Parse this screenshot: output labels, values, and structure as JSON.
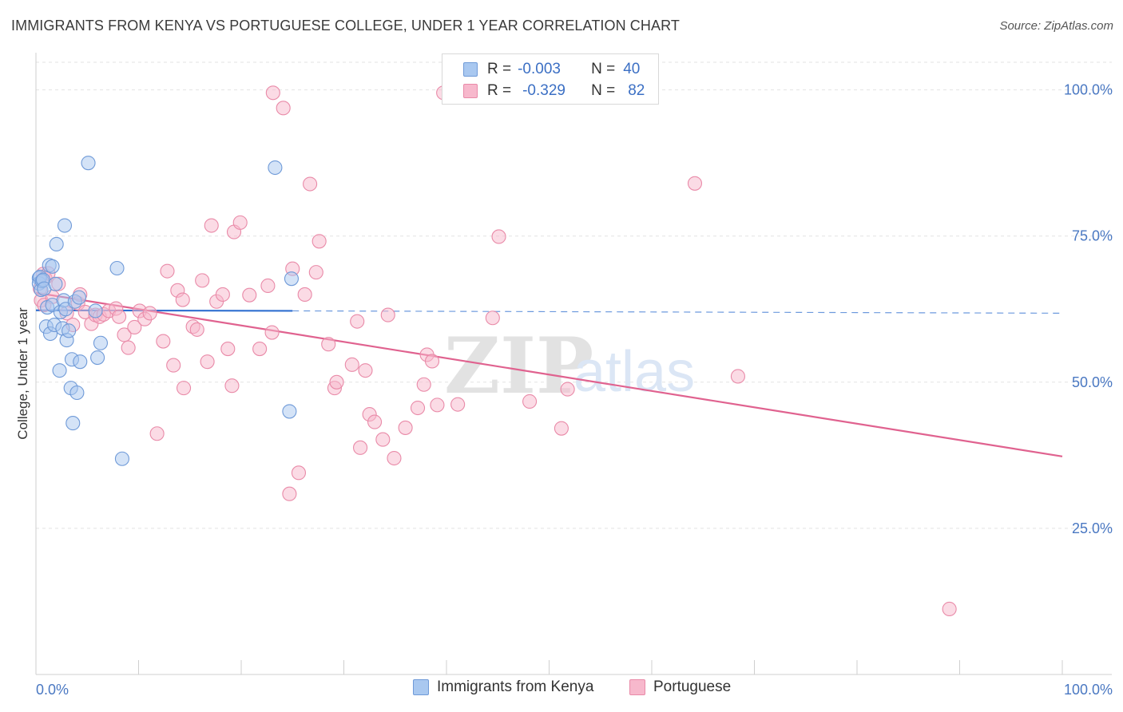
{
  "title": "IMMIGRANTS FROM KENYA VS PORTUGUESE COLLEGE, UNDER 1 YEAR CORRELATION CHART",
  "source": "Source: ZipAtlas.com",
  "legend_box": {
    "rows": [
      {
        "r_label": "R =",
        "r_value": "-0.003",
        "n_label": "N =",
        "n_value": "40",
        "color": "#a9c8f0",
        "border": "#6f9ad8"
      },
      {
        "r_label": "R =",
        "r_value": "-0.329",
        "n_label": "N =",
        "n_value": "82",
        "color": "#f7b8cc",
        "border": "#e98aa8"
      }
    ]
  },
  "bottom_legend": [
    {
      "label": "Immigrants from Kenya",
      "color": "#a9c8f0",
      "border": "#6f9ad8"
    },
    {
      "label": "Portuguese",
      "color": "#f7b8cc",
      "border": "#e98aa8"
    }
  ],
  "watermark": {
    "zip": "ZIP",
    "atlas": "atlas"
  },
  "chart_data": {
    "type": "scatter",
    "title": "IMMIGRANTS FROM KENYA VS PORTUGUESE COLLEGE, UNDER 1 YEAR CORRELATION CHART",
    "xlabel": "",
    "ylabel": "College, Under 1 year",
    "xlim": [
      0,
      100
    ],
    "ylim": [
      0,
      105
    ],
    "x_tick_labels": [
      "0.0%",
      "100.0%"
    ],
    "y_tick_labels": [
      "25.0%",
      "50.0%",
      "75.0%",
      "100.0%"
    ],
    "y_ticks": [
      25,
      50,
      75,
      100
    ],
    "grid": "horizontal dashed",
    "legend": "top-center",
    "colors": {
      "kenya": "#6f9ad8",
      "kenya_fill": "#a9c8f0",
      "portuguese": "#e98aa8",
      "portuguese_fill": "#f7b8cc",
      "kenya_line": "#2f6fd0",
      "portuguese_line": "#e0628f"
    },
    "series": [
      {
        "name": "Immigrants from Kenya",
        "points": [
          [
            0.3,
            67.8
          ],
          [
            0.3,
            66.9
          ],
          [
            0.4,
            68.0
          ],
          [
            0.5,
            65.8
          ],
          [
            0.6,
            67.3
          ],
          [
            0.7,
            67.5
          ],
          [
            0.8,
            66.0
          ],
          [
            1.0,
            59.5
          ],
          [
            1.1,
            62.8
          ],
          [
            1.3,
            70.0
          ],
          [
            1.4,
            58.3
          ],
          [
            1.6,
            63.2
          ],
          [
            1.6,
            69.8
          ],
          [
            1.8,
            59.8
          ],
          [
            1.9,
            66.8
          ],
          [
            2.0,
            73.6
          ],
          [
            2.3,
            52.0
          ],
          [
            2.4,
            62.0
          ],
          [
            2.6,
            59.2
          ],
          [
            2.7,
            64.0
          ],
          [
            2.8,
            76.8
          ],
          [
            2.9,
            62.5
          ],
          [
            3.0,
            57.2
          ],
          [
            3.2,
            58.8
          ],
          [
            3.4,
            49.0
          ],
          [
            3.5,
            53.9
          ],
          [
            3.6,
            43.0
          ],
          [
            3.8,
            63.8
          ],
          [
            4.0,
            48.2
          ],
          [
            4.2,
            64.5
          ],
          [
            4.3,
            53.5
          ],
          [
            5.1,
            87.5
          ],
          [
            5.8,
            62.2
          ],
          [
            6.0,
            54.2
          ],
          [
            6.3,
            56.7
          ],
          [
            7.9,
            69.5
          ],
          [
            8.4,
            36.9
          ],
          [
            23.3,
            86.7
          ],
          [
            24.7,
            45.0
          ],
          [
            24.9,
            67.7
          ]
        ],
        "trend": {
          "x": [
            0,
            25
          ],
          "y": [
            62.3,
            62.2
          ],
          "dashed_extension": {
            "x": [
              25,
              100
            ],
            "y": [
              62.2,
              61.8
            ]
          }
        }
      },
      {
        "name": "Portuguese",
        "points": [
          [
            0.4,
            66.0
          ],
          [
            0.5,
            64.0
          ],
          [
            0.7,
            68.5
          ],
          [
            0.8,
            63.2
          ],
          [
            0.9,
            67.8
          ],
          [
            1.2,
            68.6
          ],
          [
            1.6,
            64.6
          ],
          [
            2.2,
            66.8
          ],
          [
            3.0,
            61.8
          ],
          [
            3.6,
            59.8
          ],
          [
            4.1,
            63.5
          ],
          [
            4.3,
            65.0
          ],
          [
            4.8,
            62.0
          ],
          [
            5.4,
            60.0
          ],
          [
            5.8,
            61.5
          ],
          [
            6.2,
            61.2
          ],
          [
            6.6,
            61.6
          ],
          [
            7.1,
            62.2
          ],
          [
            7.8,
            62.6
          ],
          [
            8.1,
            61.2
          ],
          [
            8.6,
            58.1
          ],
          [
            9.0,
            55.9
          ],
          [
            9.6,
            59.4
          ],
          [
            10.1,
            62.2
          ],
          [
            10.6,
            60.8
          ],
          [
            11.1,
            61.8
          ],
          [
            11.8,
            41.2
          ],
          [
            12.4,
            57.0
          ],
          [
            12.8,
            69.0
          ],
          [
            13.4,
            52.9
          ],
          [
            13.8,
            65.7
          ],
          [
            14.3,
            64.1
          ],
          [
            14.4,
            49.0
          ],
          [
            15.3,
            59.5
          ],
          [
            15.7,
            59.0
          ],
          [
            16.2,
            67.4
          ],
          [
            16.7,
            53.5
          ],
          [
            17.1,
            76.8
          ],
          [
            17.6,
            63.8
          ],
          [
            18.2,
            65.0
          ],
          [
            18.7,
            55.7
          ],
          [
            19.1,
            49.4
          ],
          [
            19.3,
            75.7
          ],
          [
            19.9,
            77.3
          ],
          [
            20.8,
            64.9
          ],
          [
            21.8,
            55.7
          ],
          [
            22.6,
            66.5
          ],
          [
            23.0,
            58.5
          ],
          [
            23.1,
            99.5
          ],
          [
            24.1,
            96.9
          ],
          [
            24.7,
            30.9
          ],
          [
            25.0,
            69.4
          ],
          [
            25.6,
            34.5
          ],
          [
            26.2,
            65.0
          ],
          [
            26.7,
            83.9
          ],
          [
            27.3,
            68.8
          ],
          [
            27.6,
            74.1
          ],
          [
            28.5,
            56.5
          ],
          [
            29.1,
            49.0
          ],
          [
            29.3,
            50.0
          ],
          [
            30.8,
            53.0
          ],
          [
            31.3,
            60.4
          ],
          [
            31.6,
            38.8
          ],
          [
            32.1,
            52.0
          ],
          [
            32.5,
            44.5
          ],
          [
            33.0,
            43.2
          ],
          [
            33.8,
            40.2
          ],
          [
            34.3,
            61.5
          ],
          [
            34.9,
            37.0
          ],
          [
            36.0,
            42.2
          ],
          [
            37.2,
            45.6
          ],
          [
            37.8,
            49.6
          ],
          [
            38.1,
            54.7
          ],
          [
            38.6,
            53.6
          ],
          [
            39.1,
            46.1
          ],
          [
            39.7,
            99.5
          ],
          [
            41.1,
            46.2
          ],
          [
            44.5,
            61.0
          ],
          [
            45.1,
            74.9
          ],
          [
            48.1,
            46.7
          ],
          [
            51.2,
            42.1
          ],
          [
            51.8,
            48.8
          ]
        ],
        "extra_points": [
          [
            64.2,
            84.0
          ],
          [
            68.4,
            51.0
          ],
          [
            89.0,
            11.2
          ]
        ],
        "trend": {
          "x": [
            0,
            100
          ],
          "y": [
            65.3,
            37.3
          ]
        }
      }
    ]
  }
}
